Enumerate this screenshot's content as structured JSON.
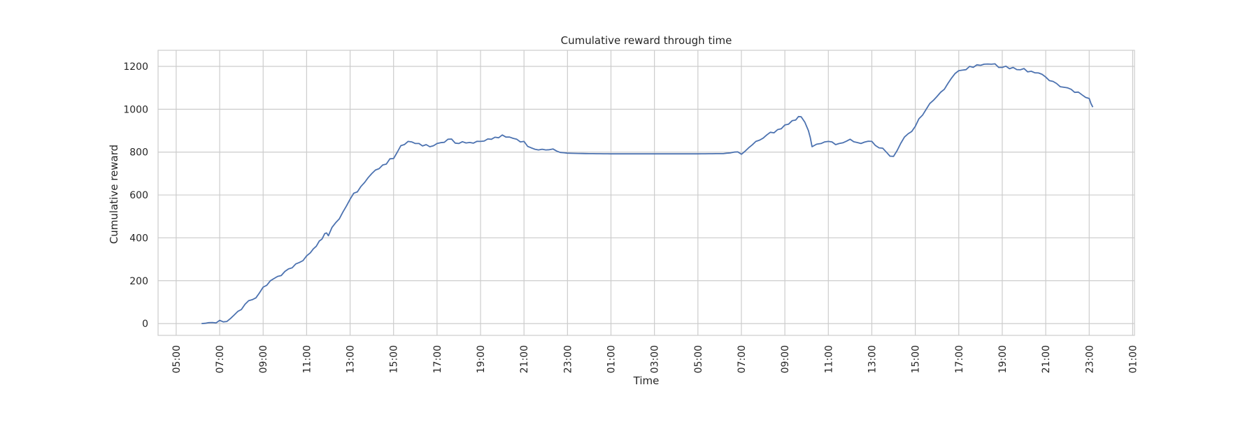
{
  "chart_data": {
    "type": "line",
    "title": "Cumulative reward through time",
    "xlabel": "Time",
    "ylabel": "Cumulative reward",
    "grid": true,
    "legend": "none",
    "xlim": [
      "Day 1 04:10",
      "Day 3 01:05"
    ],
    "ylim": [
      -55,
      1275
    ],
    "x_tick_labels": [
      "05:00",
      "07:00",
      "09:00",
      "11:00",
      "13:00",
      "15:00",
      "17:00",
      "19:00",
      "21:00",
      "23:00",
      "01:00",
      "03:00",
      "05:00",
      "07:00",
      "09:00",
      "11:00",
      "13:00",
      "15:00",
      "17:00",
      "19:00",
      "21:00",
      "23:00",
      "01:00"
    ],
    "y_tick_labels": [
      "0",
      "200",
      "400",
      "600",
      "800",
      "1000",
      "1200"
    ],
    "y_ticks": [
      0,
      200,
      400,
      600,
      800,
      1000,
      1200
    ],
    "line_color": "#4c72b0",
    "series": [
      {
        "x": [
          "Day 1 06:10",
          "Day 1 06:40",
          "Day 1 07:00",
          "Day 1 07:20",
          "Day 1 07:40",
          "Day 1 08:10",
          "Day 1 08:40",
          "Day 1 09:00",
          "Day 1 09:40",
          "Day 1 10:10",
          "Day 1 10:40",
          "Day 1 11:10",
          "Day 1 11:35",
          "Day 1 11:50",
          "Day 1 12:00",
          "Day 1 12:20",
          "Day 1 12:40",
          "Day 1 13:00",
          "Day 1 13:30",
          "Day 1 14:00",
          "Day 1 14:30",
          "Day 1 15:00",
          "Day 1 15:20",
          "Day 1 15:40",
          "Day 1 16:10",
          "Day 1 16:40",
          "Day 1 17:00",
          "Day 1 17:30",
          "Day 1 18:00",
          "Day 1 18:30",
          "Day 1 19:00",
          "Day 1 19:30",
          "Day 1 20:00",
          "Day 1 20:20",
          "Day 1 20:40",
          "Day 1 21:00",
          "Day 1 21:20",
          "Day 1 21:40",
          "Day 1 22:00",
          "Day 1 22:30",
          "Day 1 23:00",
          "Day 2 00:00",
          "Day 2 01:00",
          "Day 2 03:00",
          "Day 2 05:00",
          "Day 2 06:10",
          "Day 2 06:40",
          "Day 2 07:00",
          "Day 2 07:20",
          "Day 2 07:40",
          "Day 2 08:10",
          "Day 2 08:40",
          "Day 2 09:10",
          "Day 2 09:30",
          "Day 2 09:45",
          "Day 2 10:05",
          "Day 2 10:15",
          "Day 2 10:40",
          "Day 2 11:00",
          "Day 2 11:30",
          "Day 2 12:00",
          "Day 2 12:30",
          "Day 2 13:00",
          "Day 2 13:20",
          "Day 2 13:40",
          "Day 2 14:00",
          "Day 2 14:30",
          "Day 2 15:00",
          "Day 2 15:30",
          "Day 2 16:00",
          "Day 2 16:30",
          "Day 2 17:00",
          "Day 2 17:30",
          "Day 2 18:00",
          "Day 2 18:30",
          "Day 2 19:00",
          "Day 2 19:30",
          "Day 2 20:00",
          "Day 2 20:30",
          "Day 2 21:00",
          "Day 2 21:30",
          "Day 2 22:00",
          "Day 2 22:30",
          "Day 2 23:00",
          "Day 2 23:10"
        ],
        "y": [
          0,
          5,
          15,
          10,
          40,
          90,
          120,
          170,
          220,
          255,
          285,
          330,
          385,
          420,
          410,
          470,
          520,
          580,
          640,
          700,
          740,
          770,
          830,
          850,
          840,
          825,
          840,
          860,
          840,
          845,
          850,
          860,
          880,
          870,
          860,
          850,
          820,
          810,
          810,
          805,
          795,
          793,
          792,
          792,
          792,
          793,
          800,
          790,
          820,
          850,
          880,
          905,
          930,
          950,
          965,
          900,
          825,
          840,
          850,
          840,
          860,
          840,
          850,
          820,
          800,
          780,
          870,
          920,
          1000,
          1060,
          1120,
          1180,
          1200,
          1205,
          1210,
          1195,
          1195,
          1190,
          1170,
          1150,
          1120,
          1100,
          1080,
          1050,
          1010
        ]
      }
    ]
  }
}
